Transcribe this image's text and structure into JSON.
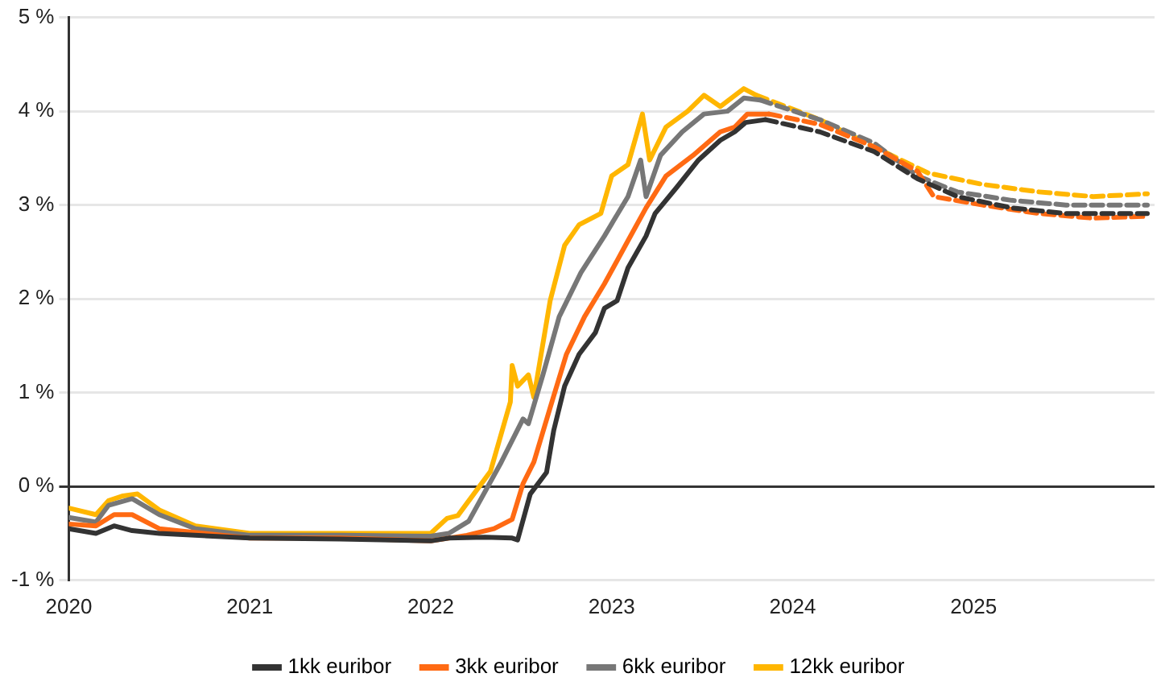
{
  "chart_data": {
    "type": "line",
    "xlim": [
      2020,
      2026
    ],
    "xticks": [
      2020,
      2021,
      2022,
      2023,
      2024,
      2025
    ],
    "ylim": [
      -1,
      5
    ],
    "yticks": [
      {
        "value": -1,
        "label": "-1 %"
      },
      {
        "value": 0,
        "label": "0 %"
      },
      {
        "value": 1,
        "label": "1 %"
      },
      {
        "value": 2,
        "label": "2 %"
      },
      {
        "value": 3,
        "label": "3 %"
      },
      {
        "value": 4,
        "label": "4 %"
      },
      {
        "value": 5,
        "label": "5 %"
      }
    ],
    "grid": "y",
    "legend": "bottom",
    "marker": "none",
    "series": [
      {
        "name": "1kk euribor",
        "color": "#333333",
        "line_style": "solid",
        "x": [
          2020.0,
          2020.15,
          2020.25,
          2020.35,
          2020.5,
          2021.0,
          2021.5,
          2022.0,
          2022.1,
          2022.3,
          2022.45,
          2022.48,
          2022.55,
          2022.64,
          2022.68,
          2022.74,
          2022.82,
          2022.91,
          2022.96,
          2023.03,
          2023.09,
          2023.19,
          2023.24,
          2023.36,
          2023.48,
          2023.6,
          2023.68,
          2023.74,
          2023.85
        ],
        "values": [
          -0.45,
          -0.5,
          -0.42,
          -0.47,
          -0.5,
          -0.55,
          -0.56,
          -0.58,
          -0.55,
          -0.54,
          -0.55,
          -0.57,
          -0.08,
          0.15,
          0.6,
          1.07,
          1.41,
          1.64,
          1.9,
          1.98,
          2.33,
          2.67,
          2.91,
          3.19,
          3.48,
          3.69,
          3.78,
          3.88,
          3.91
        ]
      },
      {
        "name": "3kk euribor",
        "color": "#ff6a13",
        "line_style": "solid",
        "x": [
          2020.0,
          2020.15,
          2020.25,
          2020.35,
          2020.5,
          2021.0,
          2021.5,
          2022.0,
          2022.2,
          2022.35,
          2022.45,
          2022.51,
          2022.57,
          2022.66,
          2022.75,
          2022.85,
          2022.96,
          2023.09,
          2023.19,
          2023.3,
          2023.45,
          2023.6,
          2023.68,
          2023.75,
          2023.87
        ],
        "values": [
          -0.4,
          -0.42,
          -0.3,
          -0.3,
          -0.45,
          -0.55,
          -0.55,
          -0.58,
          -0.52,
          -0.45,
          -0.35,
          0.03,
          0.26,
          0.84,
          1.41,
          1.81,
          2.16,
          2.62,
          2.97,
          3.31,
          3.53,
          3.78,
          3.83,
          3.97,
          3.97
        ]
      },
      {
        "name": "6kk euribor",
        "color": "#777777",
        "line_style": "solid",
        "x": [
          2020.0,
          2020.15,
          2020.22,
          2020.35,
          2020.5,
          2020.7,
          2021.0,
          2021.5,
          2022.0,
          2022.1,
          2022.21,
          2022.39,
          2022.51,
          2022.54,
          2022.62,
          2022.71,
          2022.83,
          2022.96,
          2023.09,
          2023.16,
          2023.19,
          2023.27,
          2023.39,
          2023.51,
          2023.64,
          2023.73,
          2023.82
        ],
        "values": [
          -0.33,
          -0.38,
          -0.2,
          -0.13,
          -0.3,
          -0.45,
          -0.52,
          -0.52,
          -0.53,
          -0.5,
          -0.37,
          0.26,
          0.72,
          0.67,
          1.19,
          1.81,
          2.28,
          2.67,
          3.09,
          3.48,
          3.09,
          3.53,
          3.78,
          3.97,
          4.0,
          4.14,
          4.12
        ]
      },
      {
        "name": "12kk euribor",
        "color": "#ffb600",
        "line_style": "solid",
        "x": [
          2020.0,
          2020.15,
          2020.22,
          2020.3,
          2020.38,
          2020.5,
          2020.7,
          2021.0,
          2021.5,
          2022.0,
          2022.09,
          2022.15,
          2022.33,
          2022.44,
          2022.45,
          2022.48,
          2022.54,
          2022.57,
          2022.66,
          2022.74,
          2022.82,
          2022.94,
          2023.0,
          2023.09,
          2023.17,
          2023.21,
          2023.3,
          2023.42,
          2023.51,
          2023.6,
          2023.73,
          2023.8
        ],
        "values": [
          -0.23,
          -0.3,
          -0.15,
          -0.1,
          -0.08,
          -0.25,
          -0.42,
          -0.5,
          -0.5,
          -0.5,
          -0.34,
          -0.31,
          0.16,
          0.9,
          1.29,
          1.07,
          1.19,
          0.95,
          1.98,
          2.57,
          2.79,
          2.91,
          3.31,
          3.43,
          3.97,
          3.48,
          3.83,
          4.0,
          4.17,
          4.05,
          4.24,
          4.17
        ]
      },
      {
        "color": "#333333",
        "line_style": "dashed",
        "x": [
          2023.85,
          2024.15,
          2024.45,
          2024.69,
          2024.91,
          2025.21,
          2025.51,
          2025.96
        ],
        "values": [
          3.91,
          3.78,
          3.57,
          3.28,
          3.09,
          2.97,
          2.91,
          2.91
        ]
      },
      {
        "color": "#ff6a13",
        "line_style": "dashed",
        "x": [
          2023.87,
          2024.15,
          2024.45,
          2024.69,
          2024.78,
          2025.05,
          2025.36,
          2025.66,
          2025.96
        ],
        "values": [
          3.97,
          3.86,
          3.62,
          3.36,
          3.09,
          3.0,
          2.91,
          2.86,
          2.88
        ]
      },
      {
        "color": "#777777",
        "line_style": "dashed",
        "x": [
          2023.82,
          2024.15,
          2024.45,
          2024.69,
          2024.91,
          2025.21,
          2025.51,
          2025.96
        ],
        "values": [
          4.12,
          3.91,
          3.66,
          3.31,
          3.14,
          3.05,
          3.0,
          3.0
        ]
      },
      {
        "color": "#ffb600",
        "line_style": "dashed",
        "x": [
          2023.8,
          2024.15,
          2024.45,
          2024.75,
          2025.05,
          2025.36,
          2025.66,
          2025.96
        ],
        "values": [
          4.17,
          3.91,
          3.62,
          3.34,
          3.22,
          3.14,
          3.09,
          3.12
        ]
      }
    ]
  }
}
